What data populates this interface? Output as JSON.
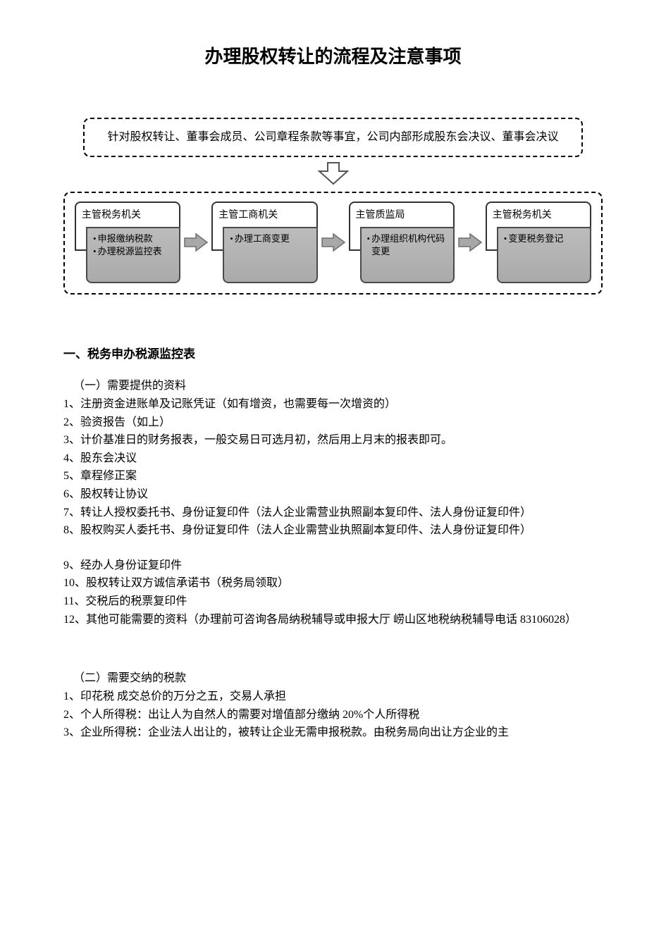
{
  "title": "办理股权转让的流程及注意事项",
  "topBox": "针对股权转让、董事会成员、公司章程条款等事宜，公司内部形成股东会决议、董事会决议",
  "flow": {
    "nodes": [
      {
        "header": "主管税务机关",
        "bullets": [
          "申报缴纳税款",
          "办理税源监控表"
        ]
      },
      {
        "header": "主管工商机关",
        "bullets": [
          "办理工商变更"
        ]
      },
      {
        "header": "主管质监局",
        "bullets": [
          "办理组织机构代码变更"
        ]
      },
      {
        "header": "主管税务机关",
        "bullets": [
          "变更税务登记"
        ]
      }
    ],
    "styling": {
      "containerBorder": "dashed",
      "containerBorderColor": "#000000",
      "nodeHeaderBg": "#ffffff",
      "nodeBodyBg": "#b5b5b5",
      "nodeBorderColor": "#333333",
      "arrowFill": "#a8a8a8",
      "arrowStroke": "#6e6e6e",
      "fontSizeHeader": 14,
      "fontSizeBody": 13,
      "nodeWidth": 154
    }
  },
  "section1": {
    "heading": "一、税务申办税源监控表",
    "sub1": "（一）需要提供的资料",
    "items1": [
      "1、注册资金进账单及记账凭证（如有增资，也需要每一次增资的）",
      "2、验资报告（如上）",
      "3、计价基准日的财务报表，一般交易日可选月初，然后用上月末的报表即可。",
      "4、股东会决议",
      "5、章程修正案",
      "6、股权转让协议",
      "7、转让人授权委托书、身份证复印件（法人企业需营业执照副本复印件、法人身份证复印件）",
      "8、股权购买人委托书、身份证复印件（法人企业需营业执照副本复印件、法人身份证复印件）"
    ],
    "items1b": [
      "9、经办人身份证复印件",
      "10、股权转让双方诚信承诺书（税务局领取）",
      "11、交税后的税票复印件",
      "12、其他可能需要的资料（办理前可咨询各局纳税辅导或申报大厅  崂山区地税纳税辅导电话 83106028）"
    ],
    "sub2": "（二）需要交纳的税款",
    "items2": [
      "1、印花税  成交总价的万分之五，交易人承担",
      "2、个人所得税：出让人为自然人的需要对增值部分缴纳 20%个人所得税",
      "3、企业所得税：企业法人出让的，被转让企业无需申报税款。由税务局向出让方企业的主"
    ]
  }
}
